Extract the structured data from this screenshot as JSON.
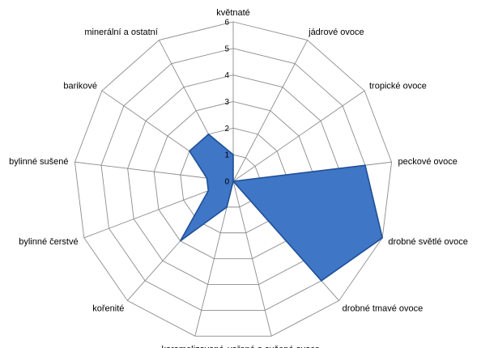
{
  "chart_data": {
    "type": "radar",
    "title": "",
    "categories": [
      "květnaté",
      "jádrové ovoce",
      "tropické ovoce",
      "peckové ovoce",
      "drobné světlé ovoce",
      "drobné tmavé ovoce",
      "vařené a sušené ovoce",
      "karamelizované",
      "kořenité",
      "bylinné čerstvé",
      "bylinné sušené",
      "barikové",
      "minerální a ostatní"
    ],
    "series": [
      {
        "values": [
          1,
          0,
          0,
          5,
          6,
          5,
          0,
          1,
          3,
          1,
          1,
          2,
          2
        ],
        "color": "#3f76c6"
      }
    ],
    "ylim": [
      0,
      6
    ],
    "yticks": [
      "0",
      "1",
      "2",
      "3",
      "4",
      "5",
      "6"
    ],
    "grid": true,
    "legend": "none"
  }
}
